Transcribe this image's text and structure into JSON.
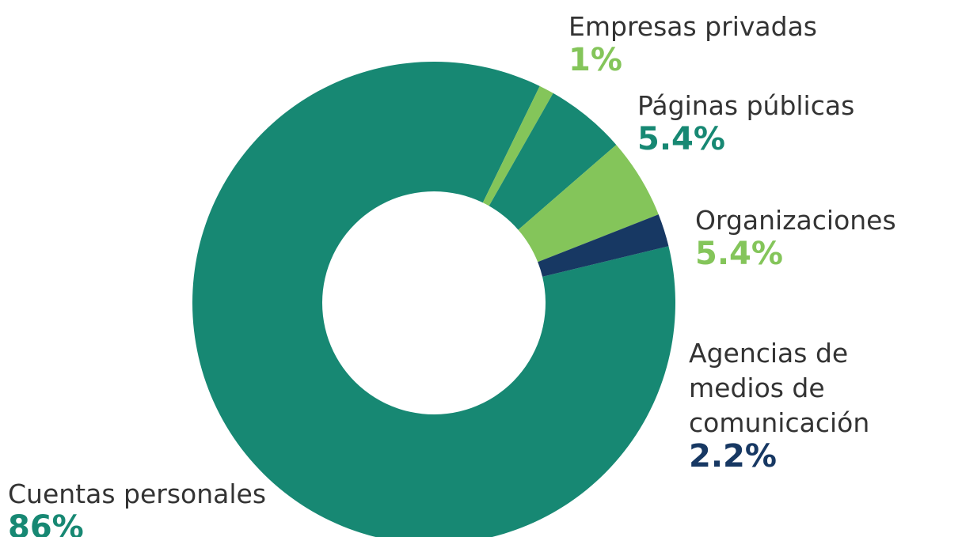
{
  "chart_data": {
    "type": "donut",
    "categories": [
      "Cuentas personales",
      "Empresas privadas",
      "Páginas públicas",
      "Organizaciones",
      "Agencias de medios de comunicación"
    ],
    "values": [
      86,
      1,
      5.4,
      5.4,
      2.2
    ],
    "value_labels": [
      "86%",
      "1%",
      "5.4%",
      "5.4%",
      "2.2%"
    ],
    "colors": [
      "#178873",
      "#84c55a",
      "#178873",
      "#84c55a",
      "#173863"
    ]
  }
}
